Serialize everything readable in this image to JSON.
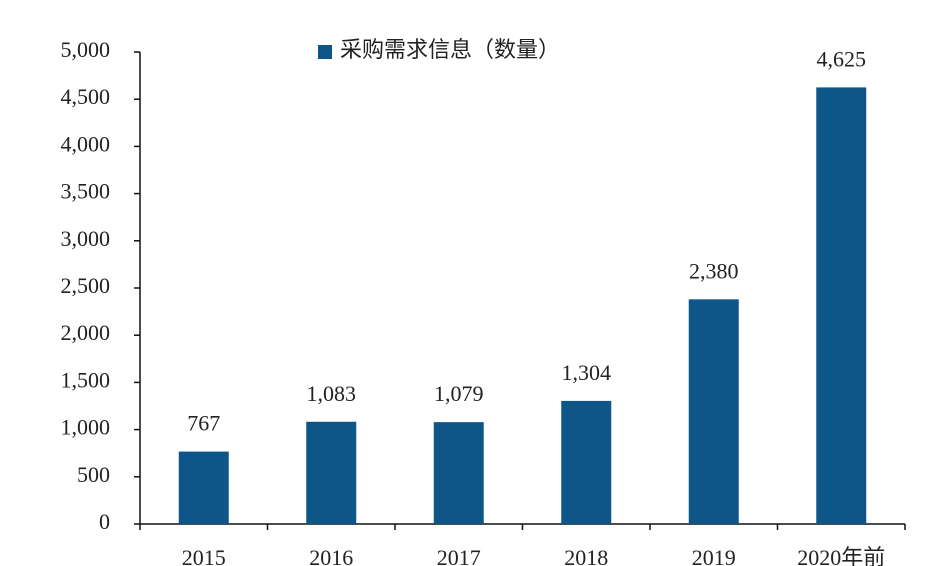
{
  "chart_data": {
    "type": "bar",
    "legend": "采购需求信息（数量）",
    "categories": [
      "2015",
      "2016",
      "2017",
      "2018",
      "2019",
      "2020年前"
    ],
    "values": [
      767,
      1083,
      1079,
      1304,
      2380,
      4625
    ],
    "value_labels": [
      "767",
      "1,083",
      "1,079",
      "1,304",
      "2,380",
      "4,625"
    ],
    "color": "#0e5687",
    "ylim": [
      0,
      5000
    ],
    "yticks": [
      0,
      500,
      {
        "value": 1000,
        "label": "1,000"
      },
      {
        "value": 1500,
        "label": "1,500"
      },
      {
        "value": 2000,
        "label": "2,000"
      },
      {
        "value": 2500,
        "label": "2,500"
      },
      {
        "value": 3000,
        "label": "3,000"
      },
      {
        "value": 3500,
        "label": "3,500"
      },
      {
        "value": 4000,
        "label": "4,000"
      },
      {
        "value": 4500,
        "label": "4,500"
      },
      {
        "value": 5000,
        "label": "5,000"
      }
    ],
    "grid": false
  }
}
